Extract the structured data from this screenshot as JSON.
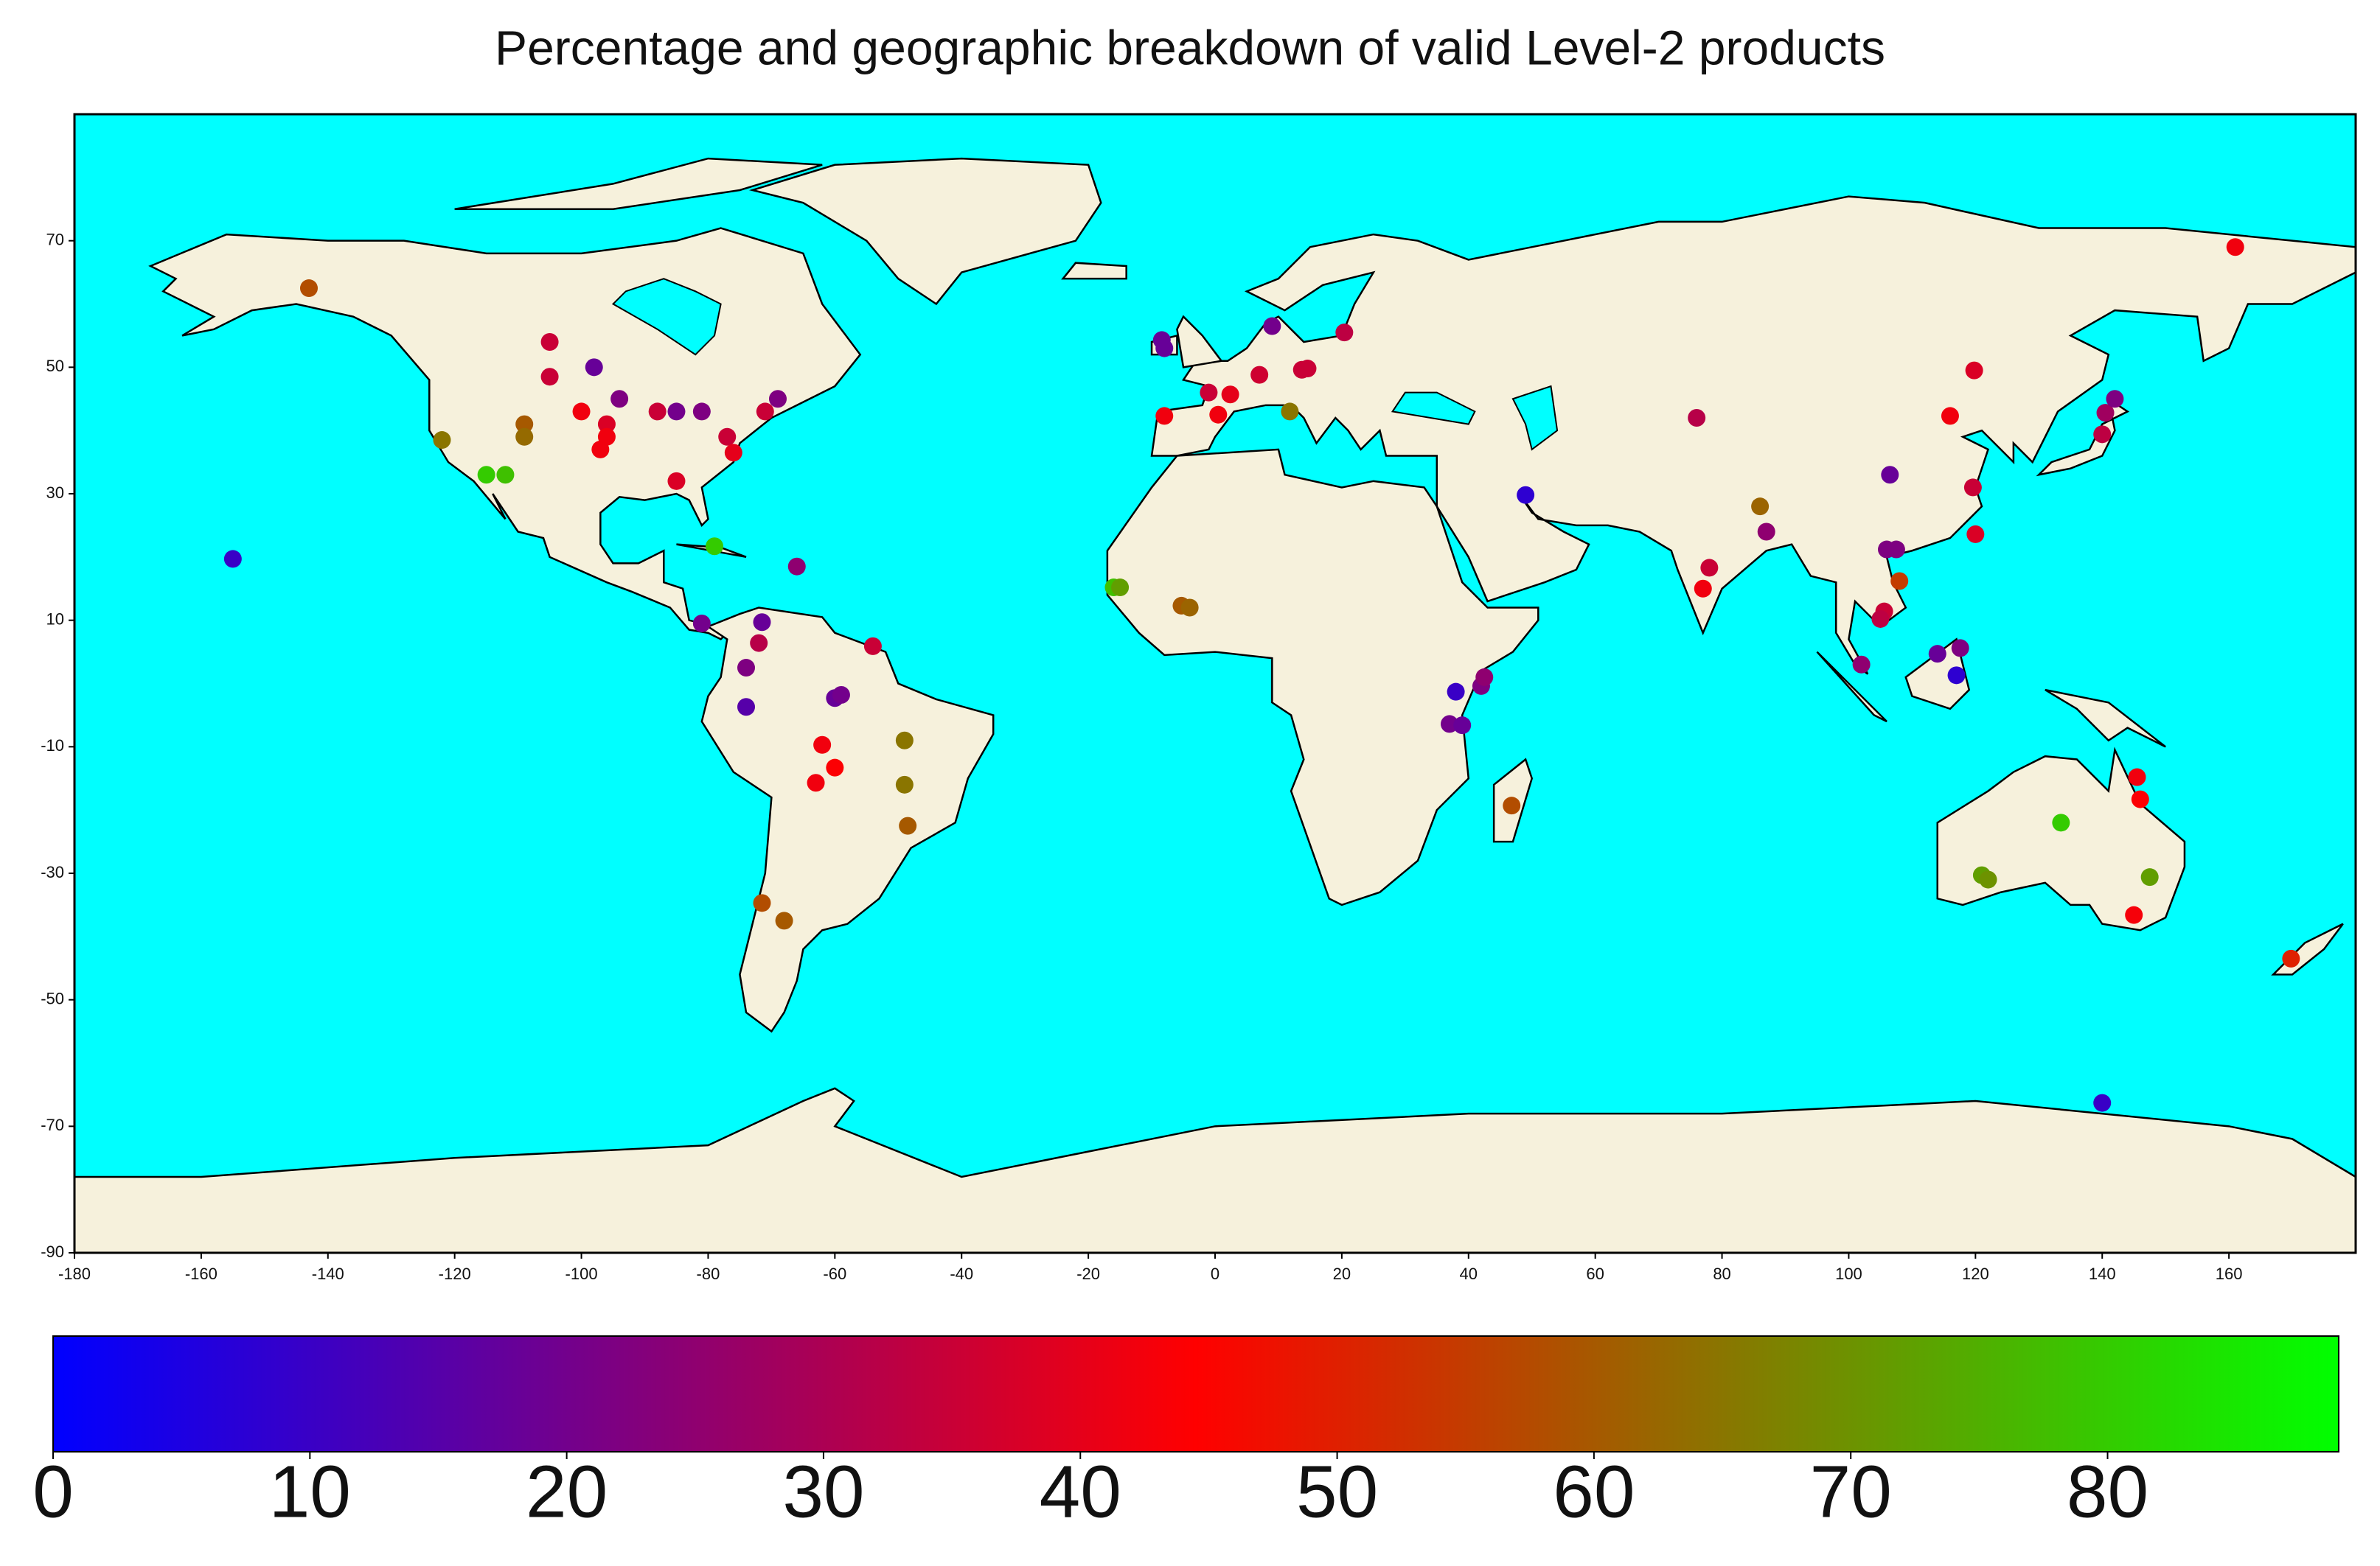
{
  "chart_data": {
    "type": "scatter",
    "title": "Percentage and geographic breakdown of valid Level-2 products",
    "xlim": [
      -180,
      180
    ],
    "ylim": [
      -90,
      90
    ],
    "xticks": [
      -180,
      -160,
      -140,
      -120,
      -100,
      -80,
      -60,
      -40,
      -20,
      0,
      20,
      40,
      60,
      80,
      100,
      120,
      140,
      160
    ],
    "yticks": [
      -90,
      -70,
      -50,
      -30,
      -10,
      10,
      30,
      50,
      70
    ],
    "grid": false,
    "colormap": [
      "#0000ff",
      "#ff0000",
      "#00ff00"
    ],
    "clim": [
      0,
      89
    ],
    "cticks": [
      0,
      10,
      20,
      30,
      40,
      50,
      60,
      70,
      80
    ],
    "x": [
      -143,
      -155,
      -122,
      -115,
      -112,
      -109,
      -109,
      -105,
      -105,
      -98,
      -100,
      -96,
      -96,
      -97,
      -94,
      -88,
      -85,
      -81,
      -85,
      -77,
      -76,
      -71,
      -69,
      -79,
      -66,
      -81,
      -71.5,
      -72,
      -74,
      -74,
      -60,
      -59,
      -54,
      -62,
      -63,
      -60,
      -49,
      -49,
      -48.5,
      -71.5,
      -68,
      -8.4,
      -8,
      -8,
      -1,
      0.5,
      2.4,
      7,
      9,
      11.8,
      13.7,
      14.6,
      20.4,
      -16,
      -15,
      -5.3,
      -4,
      49,
      38,
      42,
      42.5,
      37,
      39,
      46.8,
      76,
      77,
      78,
      86,
      87,
      106.5,
      106,
      107.5,
      108,
      105.6,
      105,
      102,
      114,
      117,
      117.6,
      116,
      119.8,
      119.6,
      120,
      140,
      140.5,
      142,
      161,
      133.5,
      121,
      122,
      147.5,
      145,
      145.5,
      146,
      169.8,
      140
    ],
    "y": [
      62.5,
      19.7,
      38.5,
      33,
      33,
      41,
      39,
      54,
      48.5,
      50,
      43,
      41,
      39,
      37,
      45,
      43,
      43,
      43,
      32,
      39,
      36.5,
      43,
      45,
      21.7,
      18.5,
      9.5,
      9.7,
      6.4,
      2.5,
      -3.7,
      -2.3,
      -1.8,
      5.9,
      -9.7,
      -15.7,
      -13.3,
      -9,
      -16,
      -22.5,
      -34.7,
      -37.5,
      54.3,
      53,
      42.3,
      46,
      42.5,
      45.7,
      48.8,
      56.5,
      43,
      49.6,
      49.8,
      55.5,
      15.2,
      15.2,
      12.3,
      12,
      29.8,
      -1.3,
      -0.4,
      1,
      -6.4,
      -6.6,
      -19.3,
      42,
      15,
      18.3,
      28,
      24,
      33,
      21.2,
      21.2,
      16.2,
      11.4,
      10.2,
      3,
      4.7,
      1.3,
      5.6,
      42.3,
      49.5,
      31,
      23.6,
      39.4,
      42.8,
      45,
      69,
      -22,
      -30.3,
      -31,
      -30.6,
      -36.6,
      -14.8,
      -18.3,
      -43.5,
      -66.3
    ],
    "values": [
      58,
      10,
      65,
      80,
      78,
      60,
      63,
      35,
      35,
      18,
      42,
      38,
      42,
      42,
      22,
      35,
      20,
      22,
      38,
      35,
      40,
      35,
      22,
      80,
      25,
      20,
      18,
      32,
      22,
      15,
      18,
      20,
      35,
      42,
      42,
      44,
      65,
      65,
      60,
      58,
      60,
      18,
      18,
      42,
      35,
      42,
      40,
      36,
      20,
      65,
      35,
      35,
      33,
      78,
      72,
      60,
      62,
      8,
      10,
      22,
      25,
      20,
      18,
      58,
      32,
      42,
      35,
      62,
      25,
      18,
      22,
      22,
      55,
      35,
      33,
      25,
      18,
      8,
      22,
      42,
      38,
      35,
      38,
      33,
      28,
      22,
      42,
      80,
      72,
      70,
      72,
      43,
      42,
      44,
      50,
      10
    ]
  }
}
